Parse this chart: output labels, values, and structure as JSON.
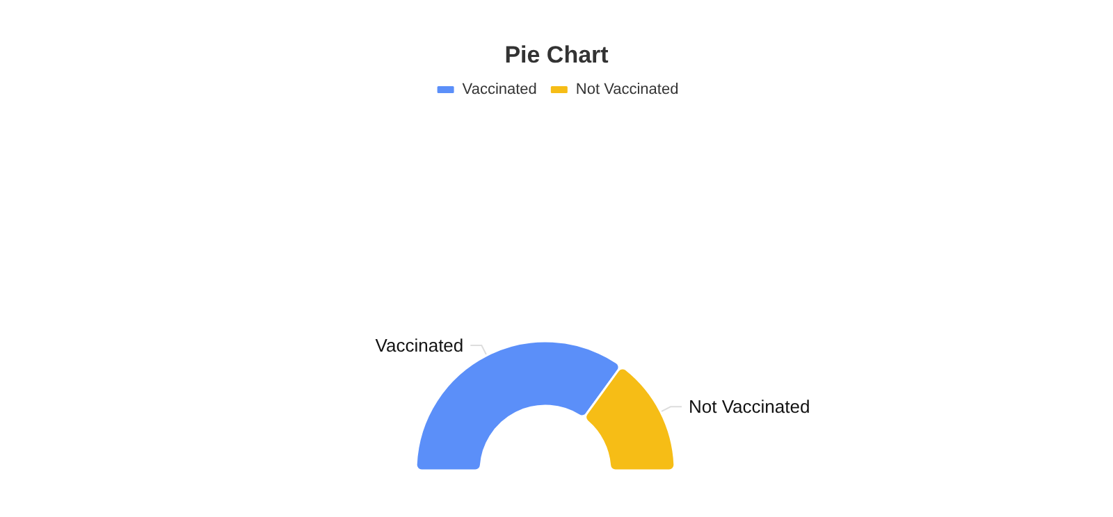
{
  "chart_data": {
    "type": "donut",
    "title": "Pie Chart",
    "categories": [
      "Vaccinated",
      "Not Vaccinated"
    ],
    "values": [
      70,
      30
    ],
    "colors": [
      "#5b8ff9",
      "#f6bd16"
    ],
    "legend": "top"
  }
}
